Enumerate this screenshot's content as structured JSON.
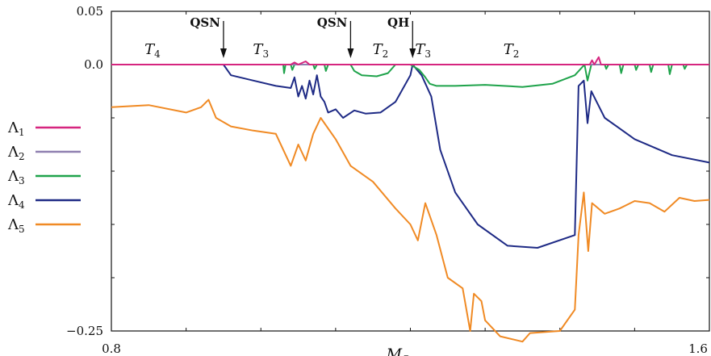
{
  "chart_data": {
    "type": "line",
    "xlabel": "M",
    "xlabel_sub": "C",
    "ylabel": "",
    "xlim": [
      0.8,
      1.6
    ],
    "ylim": [
      -0.25,
      0.05
    ],
    "x_tick_labels": [
      "0.8",
      "1.6"
    ],
    "y_tick_labels": [
      "0.05",
      "0.0",
      "−0.25"
    ],
    "y_tick_values": [
      0.05,
      0.0,
      -0.25
    ],
    "grid": false,
    "legend_placement": "left",
    "annotations": [
      {
        "text": "QSN",
        "x": 0.95
      },
      {
        "text": "QSN",
        "x": 1.12
      },
      {
        "text": "QH",
        "x": 1.203
      }
    ],
    "regions": [
      {
        "symbol": "T",
        "sub": "4",
        "x": 0.855
      },
      {
        "symbol": "T",
        "sub": "3",
        "x": 1.0
      },
      {
        "symbol": "T",
        "sub": "2",
        "x": 1.16
      },
      {
        "symbol": "T",
        "sub": "3",
        "x": 1.217
      },
      {
        "symbol": "T",
        "sub": "2",
        "x": 1.335
      }
    ],
    "series": [
      {
        "name": "Λ",
        "sub": "1",
        "color": "#d6257f",
        "points": [
          [
            0.8,
            0
          ],
          [
            1.04,
            0
          ],
          [
            1.045,
            0.002
          ],
          [
            1.05,
            0
          ],
          [
            1.06,
            0.003
          ],
          [
            1.065,
            0
          ],
          [
            1.44,
            0
          ],
          [
            1.443,
            0.004
          ],
          [
            1.446,
            0
          ],
          [
            1.452,
            0.007
          ],
          [
            1.455,
            0
          ],
          [
            1.6,
            0
          ]
        ]
      },
      {
        "name": "Λ",
        "sub": "2",
        "color": "#8f80b0",
        "points": [
          [
            0.8,
            0
          ],
          [
            1.6,
            0
          ]
        ]
      },
      {
        "name": "Λ",
        "sub": "3",
        "color": "#1fa34b",
        "points": [
          [
            0.8,
            0
          ],
          [
            1.03,
            0
          ],
          [
            1.031,
            -0.008
          ],
          [
            1.033,
            0
          ],
          [
            1.04,
            0
          ],
          [
            1.042,
            -0.005
          ],
          [
            1.045,
            0
          ],
          [
            1.07,
            0
          ],
          [
            1.072,
            -0.004
          ],
          [
            1.075,
            0
          ],
          [
            1.085,
            0
          ],
          [
            1.087,
            -0.006
          ],
          [
            1.09,
            0
          ],
          [
            1.12,
            0
          ],
          [
            1.125,
            -0.006
          ],
          [
            1.135,
            -0.01
          ],
          [
            1.155,
            -0.011
          ],
          [
            1.17,
            -0.008
          ],
          [
            1.18,
            0
          ],
          [
            1.2,
            0
          ],
          [
            1.212,
            -0.005
          ],
          [
            1.22,
            -0.012
          ],
          [
            1.226,
            -0.018
          ],
          [
            1.235,
            -0.02
          ],
          [
            1.26,
            -0.02
          ],
          [
            1.3,
            -0.019
          ],
          [
            1.35,
            -0.021
          ],
          [
            1.39,
            -0.018
          ],
          [
            1.42,
            -0.01
          ],
          [
            1.433,
            0
          ],
          [
            1.437,
            -0.015
          ],
          [
            1.442,
            0
          ],
          [
            1.46,
            0
          ],
          [
            1.462,
            -0.004
          ],
          [
            1.465,
            0
          ],
          [
            1.48,
            0
          ],
          [
            1.482,
            -0.008
          ],
          [
            1.485,
            0
          ],
          [
            1.5,
            0
          ],
          [
            1.502,
            -0.005
          ],
          [
            1.505,
            0
          ],
          [
            1.52,
            0
          ],
          [
            1.522,
            -0.007
          ],
          [
            1.525,
            0
          ],
          [
            1.545,
            0
          ],
          [
            1.547,
            -0.009
          ],
          [
            1.55,
            0
          ],
          [
            1.565,
            0
          ],
          [
            1.567,
            -0.004
          ],
          [
            1.57,
            0
          ],
          [
            1.6,
            0
          ]
        ]
      },
      {
        "name": "Λ",
        "sub": "4",
        "color": "#1e2a85",
        "points": [
          [
            0.8,
            0
          ],
          [
            0.95,
            0
          ],
          [
            0.96,
            -0.01
          ],
          [
            0.99,
            -0.015
          ],
          [
            1.02,
            -0.02
          ],
          [
            1.04,
            -0.022
          ],
          [
            1.045,
            -0.012
          ],
          [
            1.05,
            -0.03
          ],
          [
            1.055,
            -0.02
          ],
          [
            1.06,
            -0.032
          ],
          [
            1.065,
            -0.015
          ],
          [
            1.07,
            -0.028
          ],
          [
            1.075,
            -0.01
          ],
          [
            1.08,
            -0.03
          ],
          [
            1.085,
            -0.035
          ],
          [
            1.09,
            -0.045
          ],
          [
            1.1,
            -0.042
          ],
          [
            1.11,
            -0.05
          ],
          [
            1.125,
            -0.043
          ],
          [
            1.14,
            -0.046
          ],
          [
            1.16,
            -0.045
          ],
          [
            1.18,
            -0.035
          ],
          [
            1.2,
            -0.01
          ],
          [
            1.203,
            0
          ],
          [
            1.215,
            -0.01
          ],
          [
            1.228,
            -0.03
          ],
          [
            1.24,
            -0.08
          ],
          [
            1.26,
            -0.12
          ],
          [
            1.29,
            -0.15
          ],
          [
            1.33,
            -0.17
          ],
          [
            1.37,
            -0.172
          ],
          [
            1.42,
            -0.16
          ],
          [
            1.425,
            -0.02
          ],
          [
            1.432,
            -0.015
          ],
          [
            1.437,
            -0.055
          ],
          [
            1.442,
            -0.025
          ],
          [
            1.46,
            -0.05
          ],
          [
            1.5,
            -0.07
          ],
          [
            1.55,
            -0.085
          ],
          [
            1.6,
            -0.092
          ]
        ]
      },
      {
        "name": "Λ",
        "sub": "5",
        "color": "#f08a24",
        "points": [
          [
            0.8,
            -0.04
          ],
          [
            0.85,
            -0.038
          ],
          [
            0.9,
            -0.045
          ],
          [
            0.92,
            -0.04
          ],
          [
            0.93,
            -0.033
          ],
          [
            0.94,
            -0.05
          ],
          [
            0.96,
            -0.058
          ],
          [
            0.99,
            -0.062
          ],
          [
            1.02,
            -0.065
          ],
          [
            1.03,
            -0.08
          ],
          [
            1.04,
            -0.095
          ],
          [
            1.05,
            -0.075
          ],
          [
            1.06,
            -0.09
          ],
          [
            1.07,
            -0.065
          ],
          [
            1.08,
            -0.05
          ],
          [
            1.1,
            -0.07
          ],
          [
            1.12,
            -0.095
          ],
          [
            1.15,
            -0.11
          ],
          [
            1.18,
            -0.135
          ],
          [
            1.2,
            -0.15
          ],
          [
            1.21,
            -0.165
          ],
          [
            1.22,
            -0.13
          ],
          [
            1.235,
            -0.16
          ],
          [
            1.25,
            -0.2
          ],
          [
            1.27,
            -0.21
          ],
          [
            1.28,
            -0.25
          ],
          [
            1.285,
            -0.215
          ],
          [
            1.295,
            -0.222
          ],
          [
            1.3,
            -0.24
          ],
          [
            1.32,
            -0.255
          ],
          [
            1.35,
            -0.26
          ],
          [
            1.36,
            -0.252
          ],
          [
            1.4,
            -0.25
          ],
          [
            1.42,
            -0.23
          ],
          [
            1.425,
            -0.16
          ],
          [
            1.432,
            -0.12
          ],
          [
            1.438,
            -0.175
          ],
          [
            1.443,
            -0.13
          ],
          [
            1.46,
            -0.14
          ],
          [
            1.48,
            -0.135
          ],
          [
            1.5,
            -0.128
          ],
          [
            1.52,
            -0.13
          ],
          [
            1.54,
            -0.138
          ],
          [
            1.56,
            -0.125
          ],
          [
            1.58,
            -0.128
          ],
          [
            1.6,
            -0.127
          ]
        ]
      }
    ]
  }
}
